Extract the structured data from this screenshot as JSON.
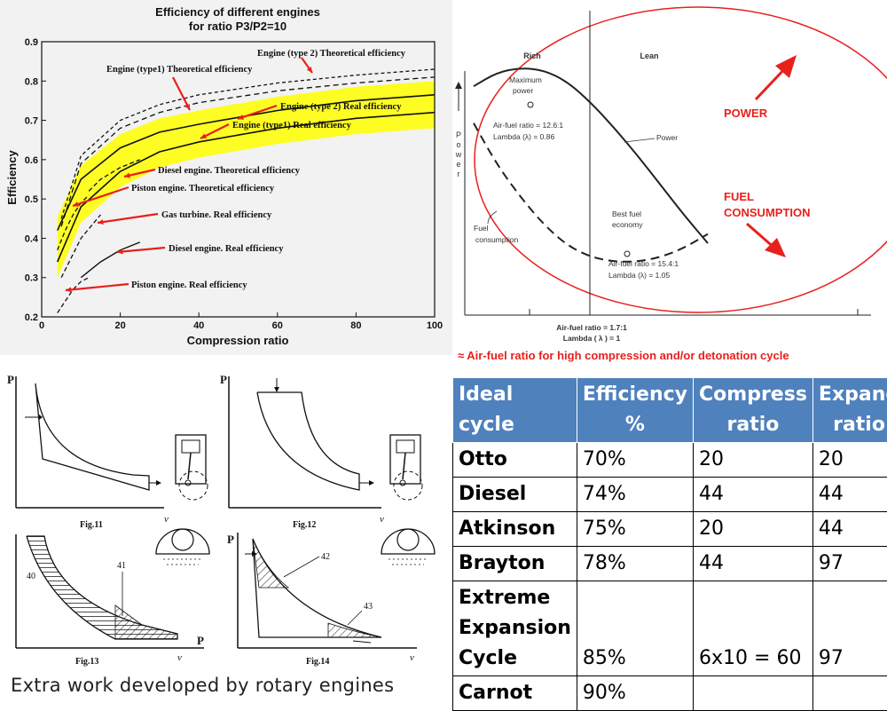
{
  "chart_data": [
    {
      "type": "line",
      "title": "Efficiency of different engines",
      "subtitle": "for ratio P3/P2=10",
      "xlabel": "Compression ratio",
      "ylabel": "Efficiency",
      "xlim": [
        0,
        100
      ],
      "ylim": [
        0.2,
        0.9
      ],
      "xticks": [
        "0",
        "20",
        "40",
        "60",
        "80",
        "100"
      ],
      "yticks": [
        "0.2",
        "0.3",
        "0.4",
        "0.5",
        "0.6",
        "0.7",
        "0.8",
        "0.9"
      ],
      "band_color": "#ffff00",
      "series": [
        {
          "name": "Engine (type 2) Theoretical efficiency",
          "x": [
            5,
            10,
            20,
            30,
            40,
            60,
            80,
            100
          ],
          "y": [
            0.45,
            0.61,
            0.7,
            0.74,
            0.765,
            0.795,
            0.815,
            0.83
          ]
        },
        {
          "name": "Engine (type1) Theoretical efficiency",
          "x": [
            5,
            10,
            20,
            30,
            40,
            60,
            80,
            100
          ],
          "y": [
            0.43,
            0.59,
            0.68,
            0.72,
            0.745,
            0.775,
            0.795,
            0.81
          ]
        },
        {
          "name": "Engine (type 2) Real efficiency",
          "x": [
            4,
            10,
            20,
            30,
            40,
            60,
            80,
            100
          ],
          "y": [
            0.42,
            0.55,
            0.63,
            0.67,
            0.69,
            0.725,
            0.75,
            0.765
          ]
        },
        {
          "name": "Engine (type1) Real efficiency",
          "x": [
            4,
            10,
            20,
            30,
            40,
            60,
            80,
            100
          ],
          "y": [
            0.34,
            0.48,
            0.57,
            0.62,
            0.645,
            0.68,
            0.705,
            0.72
          ]
        },
        {
          "name": "Diesel engine. Theoretical efficiency",
          "x": [
            12,
            15,
            20,
            25
          ],
          "y": [
            0.52,
            0.55,
            0.58,
            0.6
          ]
        },
        {
          "name": "Piston engine. Theoretical efficiency",
          "x": [
            4,
            6,
            8,
            10,
            12
          ],
          "y": [
            0.37,
            0.42,
            0.46,
            0.49,
            0.51
          ]
        },
        {
          "name": "Gas turbine. Real efficiency",
          "x": [
            5,
            10,
            15
          ],
          "y": [
            0.3,
            0.4,
            0.46
          ]
        },
        {
          "name": "Diesel engine. Real efficiency",
          "x": [
            10,
            15,
            20,
            25
          ],
          "y": [
            0.3,
            0.34,
            0.37,
            0.39
          ]
        },
        {
          "name": "Piston engine. Real efficiency",
          "x": [
            4,
            6,
            8,
            10,
            12
          ],
          "y": [
            0.21,
            0.24,
            0.27,
            0.29,
            0.3
          ]
        }
      ]
    },
    {
      "type": "line",
      "title": "",
      "ylabel": "Power",
      "region_left": "Rich",
      "region_right": "Lean",
      "x_axis_note": [
        "Air-fuel ratio = 1.7:1",
        "Lambda ( λ ) = 1"
      ],
      "series": [
        {
          "name": "Power",
          "x": [
            0,
            10,
            20,
            30,
            40,
            50,
            60,
            70,
            80,
            90,
            100
          ],
          "y": [
            0.78,
            0.84,
            0.86,
            0.85,
            0.8,
            0.71,
            0.6,
            0.48,
            0.35,
            0.22,
            0.1
          ]
        },
        {
          "name": "Fuel consumption",
          "x": [
            0,
            10,
            20,
            30,
            40,
            50,
            60,
            70,
            80,
            90,
            100
          ],
          "y": [
            0.62,
            0.44,
            0.3,
            0.18,
            0.09,
            0.04,
            0.02,
            0.02,
            0.04,
            0.08,
            0.14
          ]
        }
      ],
      "annotations": {
        "max_power": [
          "Maximum",
          "power"
        ],
        "max_power_ratio": "Air-fuel ratio = 12.6:1",
        "max_power_lambda": "Lambda (λ) = 0.86",
        "power_label": "Power",
        "fuel_label": [
          "Fuel",
          "consumption"
        ],
        "best_fuel": [
          "Best fuel",
          "economy"
        ],
        "best_fuel_ratio": "Air-fuel ratio = 15.4:1",
        "best_fuel_lambda": "Lambda (λ) = 1.05",
        "power_callout": "POWER",
        "fuel_callout": [
          "FUEL",
          "CONSUMPTION"
        ],
        "caption": "≈ Air-fuel ratio for high compression and/or detonation cycle",
        "accent_color": "#e8201c"
      }
    },
    {
      "type": "table",
      "columns": [
        [
          "Ideal",
          "cycle"
        ],
        [
          "Efficiency",
          "%"
        ],
        [
          "Compress",
          "ratio"
        ],
        [
          "Expand",
          "ratio"
        ]
      ],
      "rows": [
        {
          "cycle": "Otto",
          "efficiency": "70%",
          "compress": "20",
          "expand": "20"
        },
        {
          "cycle": "Diesel",
          "efficiency": "74%",
          "compress": "44",
          "expand": "44"
        },
        {
          "cycle": "Atkinson",
          "efficiency": "75%",
          "compress": "20",
          "expand": "44"
        },
        {
          "cycle": "Brayton",
          "efficiency": "78%",
          "compress": "44",
          "expand": "97"
        },
        {
          "cycle": [
            "Extreme",
            "Expansion",
            "Cycle"
          ],
          "efficiency": "85%",
          "compress": "6x10 = 60",
          "expand": "97"
        },
        {
          "cycle": "Carnot",
          "efficiency": "90%",
          "compress": "",
          "expand": ""
        }
      ],
      "header_color": "#4f81bd"
    }
  ],
  "pv_figures": {
    "fig11": "Fig.11",
    "fig12": "Fig.12",
    "fig13": "Fig.13",
    "fig14": "Fig.14",
    "axis_p": "P",
    "axis_v": "v",
    "label_40": "40",
    "label_41": "41",
    "label_42": "42",
    "label_43": "43"
  },
  "caption_rotary": "Extra work developed by rotary engines"
}
